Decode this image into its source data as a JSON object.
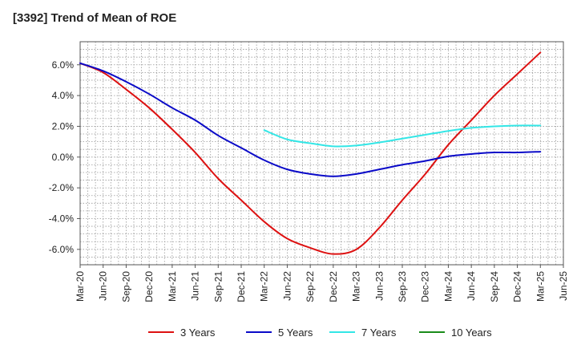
{
  "chart_data": {
    "type": "line",
    "title": "[3392]  Trend of Mean of ROE",
    "xlabel": "",
    "ylabel": "",
    "ylim": [
      -7,
      7.5
    ],
    "yticks": [
      -6,
      -4,
      -2,
      0,
      2,
      4,
      6
    ],
    "ytick_labels": [
      "-6.0%",
      "-4.0%",
      "-2.0%",
      "0.0%",
      "2.0%",
      "4.0%",
      "6.0%"
    ],
    "xticks": [
      "Mar-20",
      "Jun-20",
      "Sep-20",
      "Dec-20",
      "Mar-21",
      "Jun-21",
      "Sep-21",
      "Dec-21",
      "Mar-22",
      "Jun-22",
      "Sep-22",
      "Dec-22",
      "Mar-23",
      "Jun-23",
      "Sep-23",
      "Dec-23",
      "Mar-24",
      "Jun-24",
      "Sep-24",
      "Dec-24",
      "Mar-25",
      "Jun-25"
    ],
    "grid": true,
    "legend_position": "bottom",
    "series": [
      {
        "name": "3 Years",
        "color": "#dd1111",
        "points": [
          [
            0,
            6.1
          ],
          [
            1,
            5.5
          ],
          [
            2,
            4.4
          ],
          [
            3,
            3.2
          ],
          [
            4,
            1.8
          ],
          [
            5,
            0.3
          ],
          [
            6,
            -1.4
          ],
          [
            7,
            -2.8
          ],
          [
            8,
            -4.2
          ],
          [
            9,
            -5.3
          ],
          [
            10,
            -5.9
          ],
          [
            11,
            -6.3
          ],
          [
            12,
            -6.0
          ],
          [
            13,
            -4.6
          ],
          [
            14,
            -2.8
          ],
          [
            15,
            -1.1
          ],
          [
            16,
            0.8
          ],
          [
            17,
            2.4
          ],
          [
            18,
            4.0
          ],
          [
            19,
            5.4
          ],
          [
            20,
            6.8
          ]
        ]
      },
      {
        "name": "5 Years",
        "color": "#0a0ac8",
        "points": [
          [
            0,
            6.1
          ],
          [
            1,
            5.6
          ],
          [
            2,
            4.9
          ],
          [
            3,
            4.1
          ],
          [
            4,
            3.2
          ],
          [
            5,
            2.4
          ],
          [
            6,
            1.4
          ],
          [
            7,
            0.6
          ],
          [
            8,
            -0.2
          ],
          [
            9,
            -0.8
          ],
          [
            10,
            -1.1
          ],
          [
            11,
            -1.25
          ],
          [
            12,
            -1.1
          ],
          [
            13,
            -0.8
          ],
          [
            14,
            -0.5
          ],
          [
            15,
            -0.25
          ],
          [
            16,
            0.05
          ],
          [
            17,
            0.2
          ],
          [
            18,
            0.3
          ],
          [
            19,
            0.3
          ],
          [
            20,
            0.35
          ]
        ]
      },
      {
        "name": "7 Years",
        "color": "#33e6e6",
        "points": [
          [
            8,
            1.75
          ],
          [
            9,
            1.15
          ],
          [
            10,
            0.9
          ],
          [
            11,
            0.7
          ],
          [
            12,
            0.75
          ],
          [
            13,
            0.95
          ],
          [
            14,
            1.2
          ],
          [
            15,
            1.45
          ],
          [
            16,
            1.7
          ],
          [
            17,
            1.9
          ],
          [
            18,
            2.0
          ],
          [
            19,
            2.05
          ],
          [
            20,
            2.05
          ]
        ]
      },
      {
        "name": "10 Years",
        "color": "#1a8c1a",
        "points": []
      }
    ]
  }
}
